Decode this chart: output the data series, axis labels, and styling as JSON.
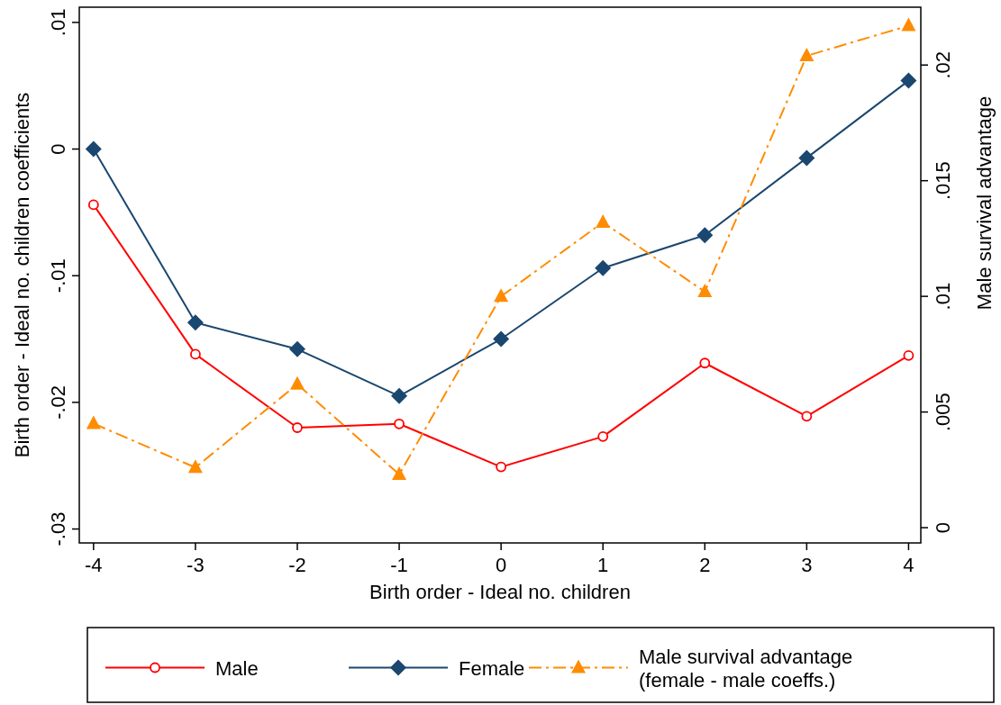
{
  "chart_data": {
    "type": "line",
    "xlabel": "Birth order - Ideal no. children",
    "ylabel": "Birth order - Ideal no. children coefficients",
    "y2label": "Male survival advantage",
    "x": [
      -4,
      -3,
      -2,
      -1,
      0,
      1,
      2,
      3,
      4
    ],
    "xlim": [
      -4.14,
      4.12
    ],
    "xticks": [
      -4,
      -3,
      -2,
      -1,
      0,
      1,
      2,
      3,
      4
    ],
    "ylim": [
      -0.0311,
      0.0112
    ],
    "yticks": [
      {
        "value": -0.03,
        "label": "-.03"
      },
      {
        "value": -0.02,
        "label": "-.02"
      },
      {
        "value": -0.01,
        "label": "-.01"
      },
      {
        "value": 0,
        "label": "0"
      },
      {
        "value": 0.01,
        "label": ".01"
      }
    ],
    "y2lim": [
      -0.00066,
      0.0225
    ],
    "y2ticks": [
      {
        "value": 0,
        "label": "0"
      },
      {
        "value": 0.005,
        "label": ".005"
      },
      {
        "value": 0.01,
        "label": ".01"
      },
      {
        "value": 0.015,
        "label": ".015"
      },
      {
        "value": 0.02,
        "label": ".02"
      }
    ],
    "grid": false,
    "legend": "bottom",
    "series": [
      {
        "name": "Male",
        "color": "#ff0000",
        "marker": "circle",
        "line_style": "solid",
        "values": [
          -0.0044,
          -0.0162,
          -0.022,
          -0.0217,
          -0.0251,
          -0.0227,
          -0.0169,
          -0.0211,
          -0.0163
        ]
      },
      {
        "name": "Female",
        "color": "#1a476f",
        "marker": "diamond",
        "line_style": "solid",
        "values": [
          0,
          -0.0137,
          -0.0158,
          -0.0195,
          -0.015,
          -0.0094,
          -0.0068,
          -0.0007,
          0.0054
        ]
      },
      {
        "name": "Male survival advantage\n(female - male coeffs.)",
        "color": "#ff8c00",
        "marker": "triangle",
        "line_style": "dashdot",
        "axis": "y2",
        "values": [
          0.0045,
          0.0026,
          0.0062,
          0.0023,
          0.01,
          0.0132,
          0.0102,
          0.0204,
          0.0217
        ]
      }
    ]
  }
}
